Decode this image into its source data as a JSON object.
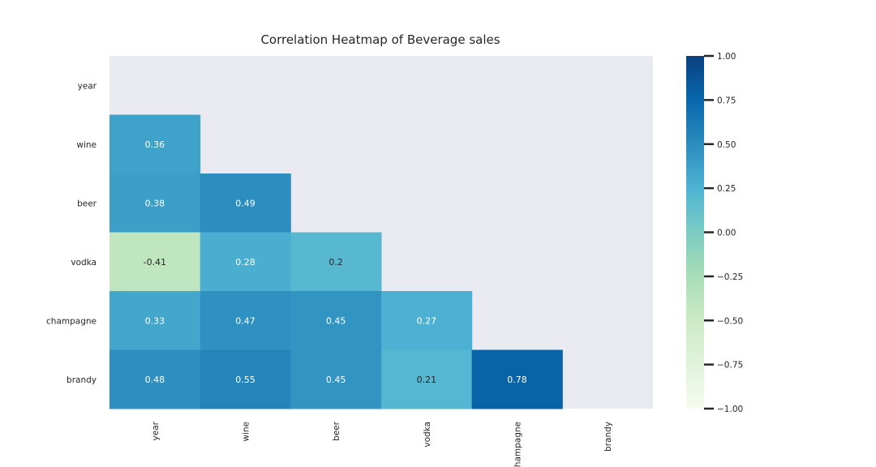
{
  "chart_data": {
    "type": "heatmap",
    "title": "Correlation Heatmap of Beverage sales",
    "xlabel": "",
    "ylabel": "",
    "row_labels": [
      "year",
      "wine",
      "beer",
      "vodka",
      "champagne",
      "brandy"
    ],
    "col_labels": [
      "year",
      "wine",
      "beer",
      "vodka",
      "champagne",
      "brandy"
    ],
    "mask": "upper triangle including diagonal",
    "values": [
      [
        null,
        null,
        null,
        null,
        null,
        null
      ],
      [
        0.36,
        null,
        null,
        null,
        null,
        null
      ],
      [
        0.38,
        0.49,
        null,
        null,
        null,
        null
      ],
      [
        -0.41,
        0.28,
        0.2,
        null,
        null,
        null
      ],
      [
        0.33,
        0.47,
        0.45,
        0.27,
        null,
        null
      ],
      [
        0.48,
        0.55,
        0.45,
        0.21,
        0.78,
        null
      ]
    ],
    "value_labels": [
      [
        null,
        null,
        null,
        null,
        null,
        null
      ],
      [
        "0.36",
        null,
        null,
        null,
        null,
        null
      ],
      [
        "0.38",
        "0.49",
        null,
        null,
        null,
        null
      ],
      [
        "-0.41",
        "0.28",
        "0.2",
        null,
        null,
        null
      ],
      [
        "0.33",
        "0.47",
        "0.45",
        "0.27",
        null,
        null
      ],
      [
        "0.48",
        "0.55",
        "0.45",
        "0.21",
        "0.78",
        null
      ]
    ],
    "colormap": "GnBu",
    "vmin": -1.0,
    "vmax": 1.0,
    "colorbar_ticks": [
      1.0,
      0.75,
      0.5,
      0.25,
      0.0,
      -0.25,
      -0.5,
      -0.75,
      -1.0
    ],
    "colorbar_tick_labels": [
      "1.00",
      "0.75",
      "0.50",
      "0.25",
      "0.00",
      "−0.25",
      "−0.50",
      "−0.75",
      "−1.00"
    ],
    "colorbar_position": "right",
    "background_color": "#eaeaf2"
  }
}
